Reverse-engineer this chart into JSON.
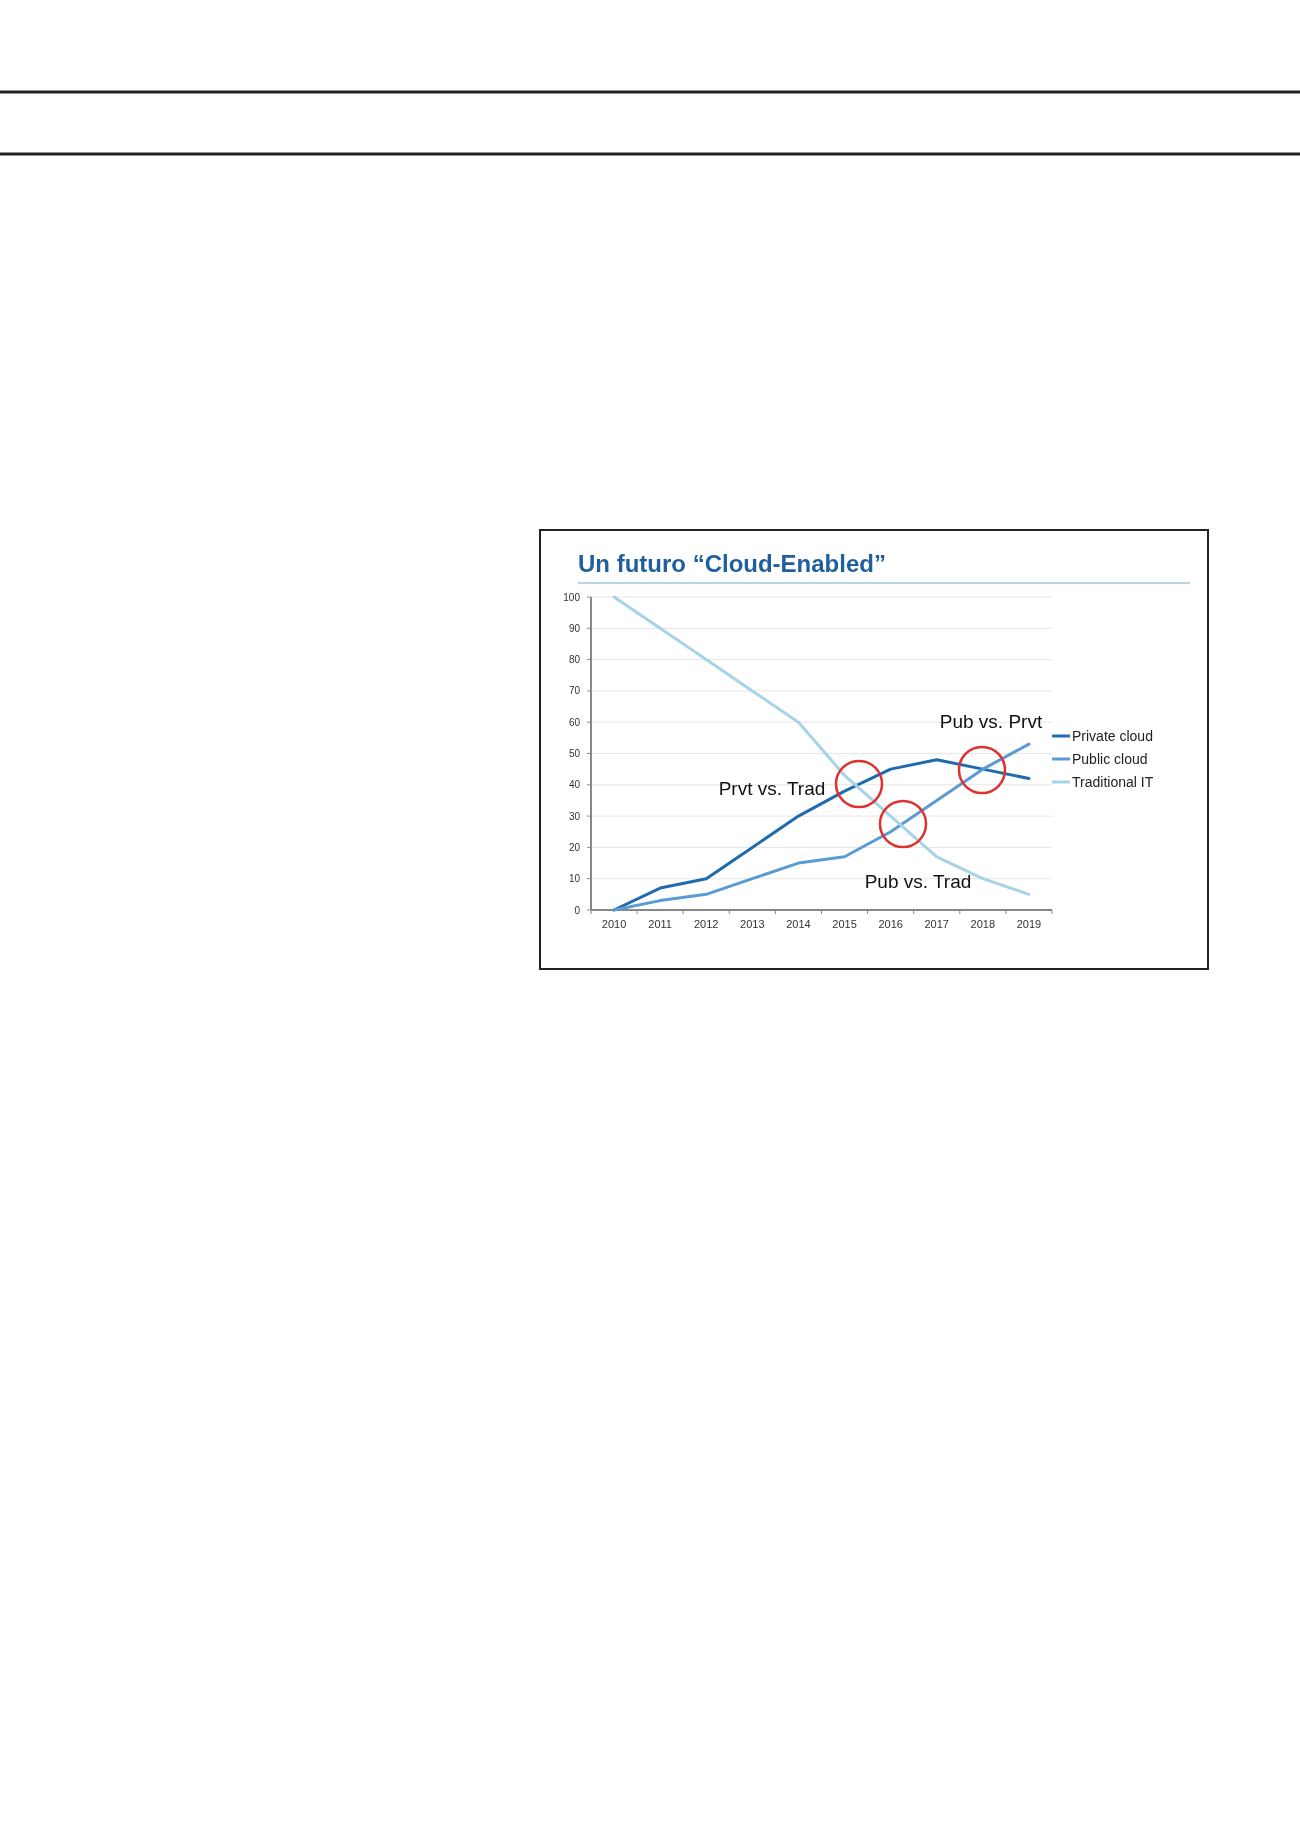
{
  "chart_data": {
    "type": "line",
    "title": "Un futuro “Cloud-Enabled”",
    "categories": [
      "2010",
      "2011",
      "2012",
      "2013",
      "2014",
      "2015",
      "2016",
      "2017",
      "2018",
      "2019"
    ],
    "series": [
      {
        "name": "Private cloud",
        "color": "#1f6bb0",
        "values": [
          0,
          7,
          10,
          20,
          30,
          38,
          45,
          48,
          45,
          42
        ]
      },
      {
        "name": "Public cloud",
        "color": "#5b9bd5",
        "values": [
          0,
          3,
          5,
          10,
          15,
          17,
          25,
          35,
          45,
          53
        ]
      },
      {
        "name": "Traditional IT",
        "color": "#a6d4e6",
        "values": [
          100,
          90,
          80,
          70,
          60,
          43,
          30,
          17,
          10,
          5
        ]
      }
    ],
    "ylim": [
      0,
      100
    ],
    "yticks": [
      0,
      10,
      20,
      30,
      40,
      50,
      60,
      70,
      80,
      90,
      100
    ],
    "grid": "y",
    "legend": "right",
    "line_style": "solid",
    "annotations": [
      "Prvt vs. Trad",
      "Pub vs. Prvt",
      "Pub vs. Trad"
    ]
  }
}
